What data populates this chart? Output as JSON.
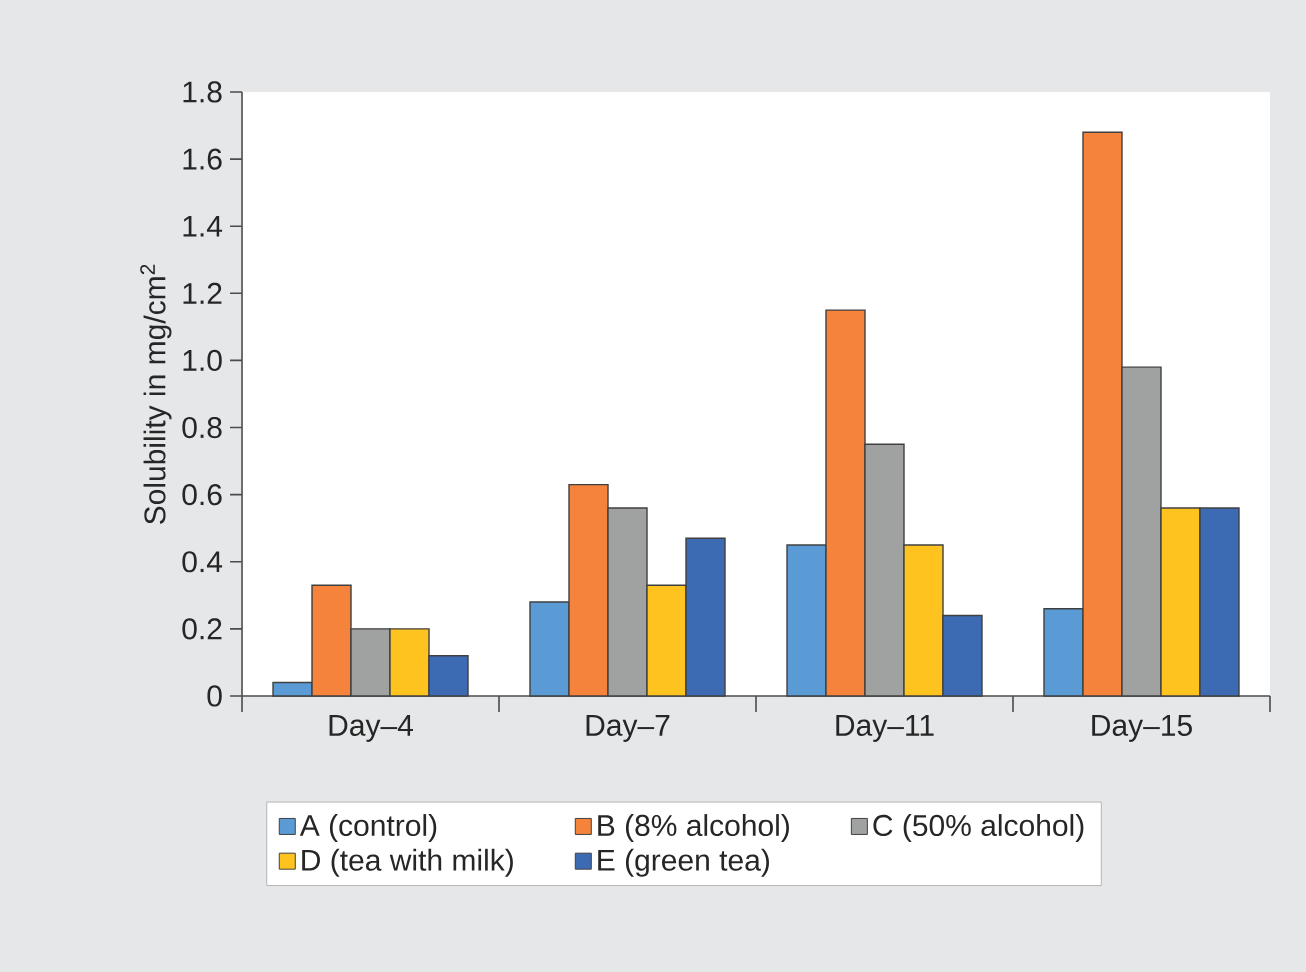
{
  "chart_data": {
    "type": "bar",
    "ylabel": "Solubility in mg/cm$^{2}$",
    "categories": [
      "Day–4",
      "Day–7",
      "Day–11",
      "Day–15"
    ],
    "series": [
      {
        "name": "A (control)",
        "color": "#5b9bd5",
        "values": [
          0.04,
          0.28,
          0.45,
          0.26
        ]
      },
      {
        "name": "B (8% alcohol)",
        "color": "#f5833c",
        "values": [
          0.33,
          0.63,
          1.15,
          1.68
        ]
      },
      {
        "name": "C (50% alcohol)",
        "color": "#a0a2a2",
        "values": [
          0.2,
          0.56,
          0.75,
          0.98
        ]
      },
      {
        "name": "D (tea with milk)",
        "color": "#ffc320",
        "values": [
          0.2,
          0.33,
          0.45,
          0.56
        ]
      },
      {
        "name": "E (green tea)",
        "color": "#3c6bb4",
        "values": [
          0.12,
          0.47,
          0.24,
          0.56
        ]
      }
    ],
    "ylim": [
      0,
      1.8
    ],
    "yticks": [
      0,
      0.2,
      0.4,
      0.6,
      0.8,
      {
        "value": 1,
        "label": "1.0"
      },
      1.2,
      1.4,
      1.6,
      1.8
    ],
    "legend": "bottom",
    "grid": false
  }
}
